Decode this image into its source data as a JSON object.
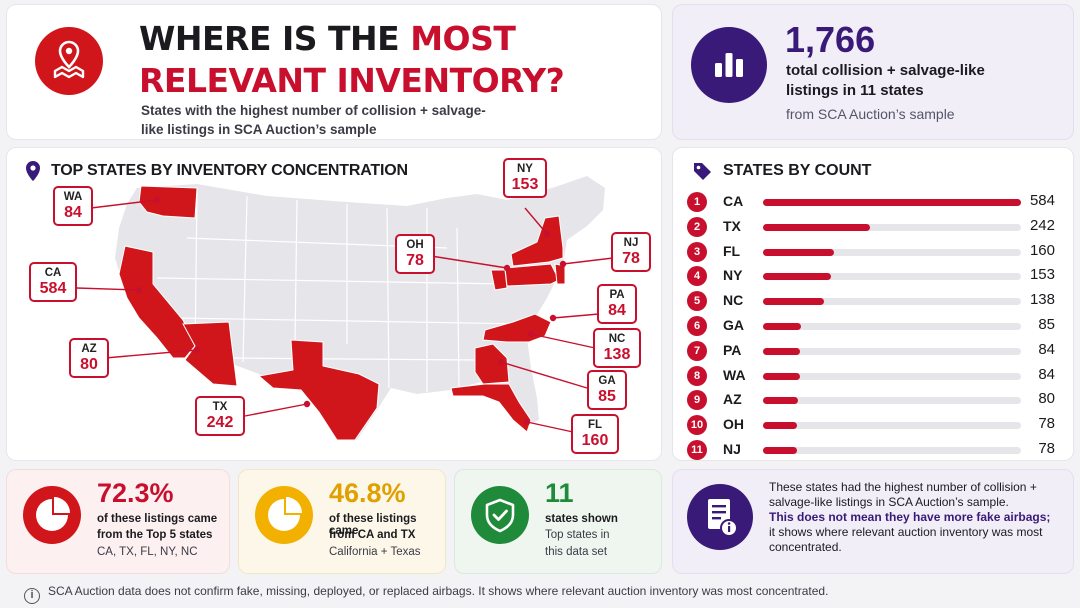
{
  "title": {
    "line1_black": "WHERE IS THE ",
    "line1_red": "MOST",
    "line2_red": "RELEVANT INVENTORY?",
    "subtitle": "States with the highest number of collision + salvage-like listings in SCA Auction’s sample",
    "icon": "map-pin-icon"
  },
  "total": {
    "number": "1,766",
    "line1": "total collision + salvage-like",
    "line2": "listings in 11 states",
    "source": "from SCA Auction’s sample",
    "icon": "bar-chart-icon"
  },
  "map": {
    "title": "TOP STATES BY INVENTORY CONCENTRATION",
    "icon": "map-pin-icon",
    "highlight_color": "#d1161b"
  },
  "count_panel": {
    "title": "STATES BY COUNT",
    "icon": "tag-icon"
  },
  "chart_data": {
    "type": "bar",
    "title": "STATES BY COUNT",
    "categories": [
      "CA",
      "TX",
      "FL",
      "NY",
      "NC",
      "GA",
      "PA",
      "WA",
      "AZ",
      "OH",
      "NJ"
    ],
    "ranks": [
      "1",
      "2",
      "3",
      "4",
      "5",
      "6",
      "7",
      "8",
      "9",
      "10",
      "11"
    ],
    "values": [
      584,
      242,
      160,
      153,
      138,
      85,
      84,
      84,
      80,
      78,
      78
    ],
    "xlim": [
      0,
      584
    ],
    "orientation": "horizontal",
    "bar_color": "#c8102e"
  },
  "stats": [
    {
      "big": "72.3%",
      "line1": "of these listings came",
      "line2": "from the Top 5 states",
      "line3": "CA, TX, FL, NY, NC",
      "color": "#d1161b",
      "icon": "pie-chart-icon"
    },
    {
      "big": "46.8%",
      "line1": "of these listings came",
      "line2": "from CA and TX",
      "line3": "California + Texas",
      "color": "#f2b000",
      "icon": "pie-chart-icon"
    },
    {
      "big": "11",
      "line1": "states shown",
      "line2": "Top states in",
      "line3": "this data set",
      "color": "#1f8a3a",
      "icon": "shield-check-icon"
    }
  ],
  "note": {
    "text1": "These states had the highest number of collision + salvage-like listings in SCA Auction’s sample.",
    "strong": "This does not mean they have more fake airbags;",
    "text2": "it shows where relevant auction inventory was most concentrated.",
    "icon": "document-info-icon"
  },
  "footer": {
    "text": "SCA Auction data does not confirm fake, missing, deployed, or replaced airbags. It shows where relevant auction inventory was most concentrated.",
    "icon": "info-icon"
  }
}
